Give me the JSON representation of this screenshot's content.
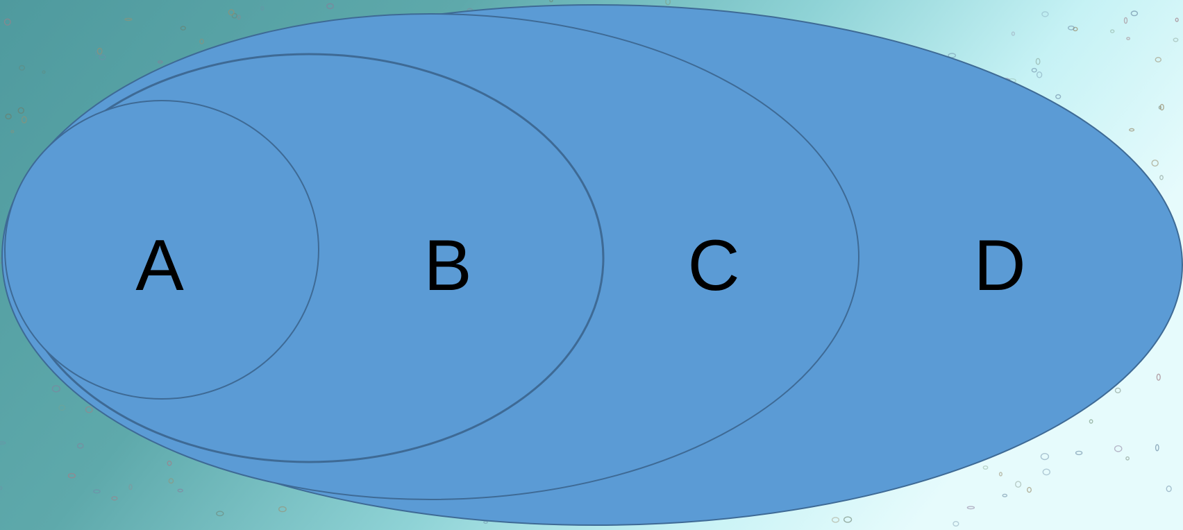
{
  "diagram": {
    "type": "nested-sets",
    "background": {
      "colors": [
        "#4f9a9e",
        "#5ea9ab",
        "#8fd3d6",
        "#c6f2f5",
        "#e6fbfc"
      ]
    },
    "ellipse_fill": "#5b9bd5",
    "ellipse_stroke": "#3e6a95",
    "label_color": "#000000",
    "sets": [
      {
        "id": "A",
        "label": "A",
        "contained_in": "B"
      },
      {
        "id": "B",
        "label": "B",
        "contained_in": "C"
      },
      {
        "id": "C",
        "label": "C",
        "contained_in": "D"
      },
      {
        "id": "D",
        "label": "D",
        "contained_in": null
      }
    ]
  }
}
